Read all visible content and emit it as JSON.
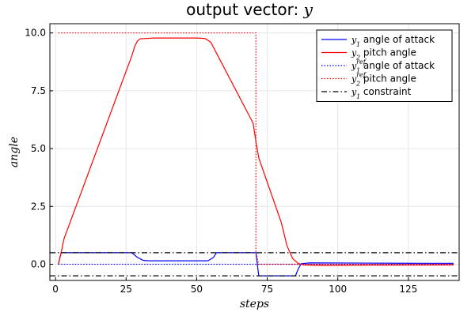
{
  "chart_data": {
    "type": "line",
    "title": "output vector: ",
    "title_math": "y",
    "xlabel": "steps",
    "ylabel": "angle",
    "xlim": [
      -2,
      143
    ],
    "ylim": [
      -0.7,
      10.4
    ],
    "xticks": [
      0,
      25,
      50,
      75,
      100,
      125
    ],
    "yticks": [
      0.0,
      2.5,
      5.0,
      7.5,
      10.0
    ],
    "xtick_labels": [
      "0",
      "25",
      "50",
      "75",
      "100",
      "125"
    ],
    "ytick_labels": [
      "0.0",
      "2.5",
      "5.0",
      "7.5",
      "10.0"
    ],
    "grid": true,
    "legend_position": "top-right",
    "series": [
      {
        "name_prefix": "y",
        "name_sub": "1",
        "name_sup": "",
        "name": " angle of attack",
        "color": "#0000ff",
        "style": "solid",
        "x": [
          1,
          2,
          3,
          27,
          29,
          31,
          33,
          54,
          56,
          57,
          58,
          71,
          72,
          85,
          86,
          87,
          90,
          110,
          130,
          141
        ],
        "y": [
          0,
          0.5,
          0.5,
          0.5,
          0.3,
          0.17,
          0.15,
          0.15,
          0.3,
          0.5,
          0.5,
          0.5,
          -0.5,
          -0.5,
          -0.2,
          0.02,
          0.06,
          0.05,
          0.04,
          0.04
        ]
      },
      {
        "name_prefix": "y",
        "name_sub": "2",
        "name_sup": "",
        "name": " pitch angle",
        "color": "#ff0000",
        "style": "solid",
        "x": [
          1,
          2,
          3,
          27,
          28,
          29,
          30,
          35,
          50,
          53,
          55,
          70,
          71,
          72,
          80,
          82,
          84,
          86,
          88,
          95,
          110,
          141
        ],
        "y": [
          0,
          0.5,
          1.1,
          9.0,
          9.4,
          9.65,
          9.75,
          9.78,
          9.78,
          9.76,
          9.6,
          6.1,
          5.3,
          4.6,
          1.8,
          0.8,
          0.25,
          0.03,
          -0.03,
          -0.05,
          -0.04,
          -0.03
        ]
      },
      {
        "name_prefix": "y",
        "name_sub": "1",
        "name_sup": "ref",
        "name": " angle of attack",
        "color": "#0000ff",
        "style": "dotted",
        "x": [
          1,
          141
        ],
        "y": [
          0,
          0
        ]
      },
      {
        "name_prefix": "y",
        "name_sub": "2",
        "name_sup": "ref",
        "name": " pitch angle",
        "color": "#ff0000",
        "style": "dotted",
        "x": [
          1,
          71,
          71,
          72,
          141
        ],
        "y": [
          10,
          10,
          0.5,
          0,
          0
        ]
      },
      {
        "name_prefix": "y",
        "name_sub": "1",
        "name_sup": "",
        "name": " constraint",
        "color": "#000000",
        "style": "dashdot",
        "x": [
          -2,
          143
        ],
        "y": [
          0.5,
          0.5
        ]
      },
      {
        "name_prefix": "",
        "name_sub": "",
        "name_sup": "",
        "name": "",
        "color": "#000000",
        "style": "dashdot",
        "legend": false,
        "x": [
          -2,
          143
        ],
        "y": [
          -0.5,
          -0.5
        ]
      }
    ]
  }
}
